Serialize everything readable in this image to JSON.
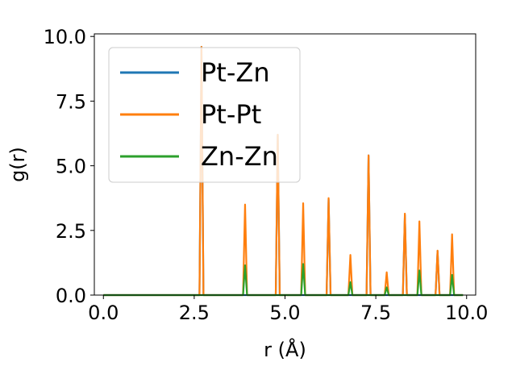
{
  "chart_data": {
    "type": "line",
    "xlabel": "r (Å)",
    "ylabel": "g(r)",
    "xlim": [
      -0.25,
      10.25
    ],
    "ylim": [
      0,
      10.1
    ],
    "xticks": [
      0.0,
      2.5,
      5.0,
      7.5,
      10.0
    ],
    "xtick_labels": [
      "0.0",
      "2.5",
      "5.0",
      "7.5",
      "10.0"
    ],
    "yticks": [
      0.0,
      2.5,
      5.0,
      7.5,
      10.0
    ],
    "ytick_labels": [
      "0.0",
      "2.5",
      "5.0",
      "7.5",
      "10.0"
    ],
    "grid": false,
    "legend_position": "upper-left",
    "peak_half_width": 0.055,
    "x_range": [
      0.0,
      9.9
    ],
    "series": [
      {
        "name": "Pt-Zn",
        "color": "#1f77b4",
        "peaks": [
          [
            2.7,
            9.6
          ],
          [
            4.8,
            6.2
          ],
          [
            6.2,
            3.7
          ],
          [
            7.3,
            5.4
          ],
          [
            8.3,
            3.1
          ],
          [
            9.2,
            1.7
          ]
        ]
      },
      {
        "name": "Pt-Pt",
        "color": "#ff7f0e",
        "peaks": [
          [
            2.7,
            9.6
          ],
          [
            3.9,
            3.5
          ],
          [
            4.8,
            6.2
          ],
          [
            5.5,
            3.55
          ],
          [
            6.2,
            3.75
          ],
          [
            6.8,
            1.55
          ],
          [
            7.3,
            5.4
          ],
          [
            7.8,
            0.88
          ],
          [
            8.3,
            3.15
          ],
          [
            8.7,
            2.85
          ],
          [
            9.2,
            1.72
          ],
          [
            9.6,
            2.35
          ]
        ]
      },
      {
        "name": "Zn-Zn",
        "color": "#2ca02c",
        "peaks": [
          [
            3.9,
            1.15
          ],
          [
            5.5,
            1.2
          ],
          [
            6.8,
            0.5
          ],
          [
            7.8,
            0.3
          ],
          [
            8.7,
            0.95
          ],
          [
            9.6,
            0.78
          ]
        ]
      }
    ]
  }
}
